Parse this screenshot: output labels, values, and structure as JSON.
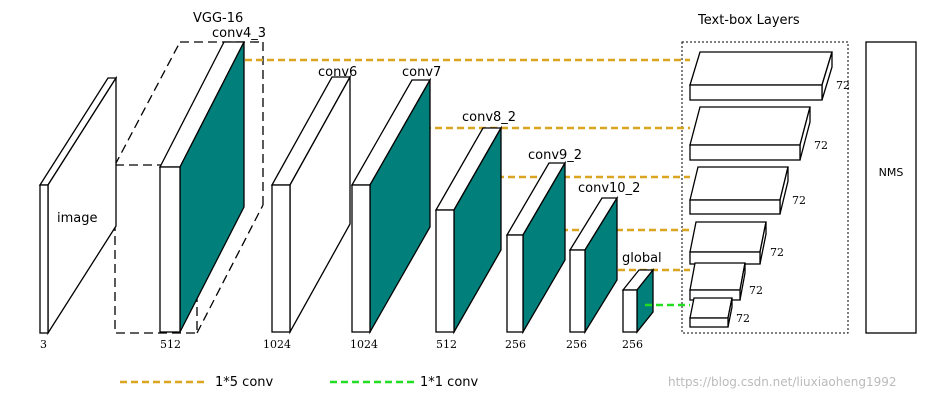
{
  "header": {
    "vgg": "VGG-16",
    "textbox_title": "Text-box Layers",
    "nms": "NMS"
  },
  "layers": [
    {
      "name": "image",
      "channels": "3"
    },
    {
      "name": "conv4_3",
      "channels": "512"
    },
    {
      "name": "conv6",
      "channels": "1024"
    },
    {
      "name": "conv7",
      "channels": "1024"
    },
    {
      "name": "conv8_2",
      "channels": "512"
    },
    {
      "name": "conv9_2",
      "channels": "256"
    },
    {
      "name": "conv10_2",
      "channels": "256"
    },
    {
      "name": "global",
      "channels": "256"
    }
  ],
  "text_box_layers": [
    "72",
    "72",
    "72",
    "72",
    "72",
    "72"
  ],
  "legend": [
    {
      "label": "1*5 conv"
    },
    {
      "label": "1*1 conv"
    }
  ],
  "watermark": "https://blog.csdn.net/liuxiaoheng1992"
}
